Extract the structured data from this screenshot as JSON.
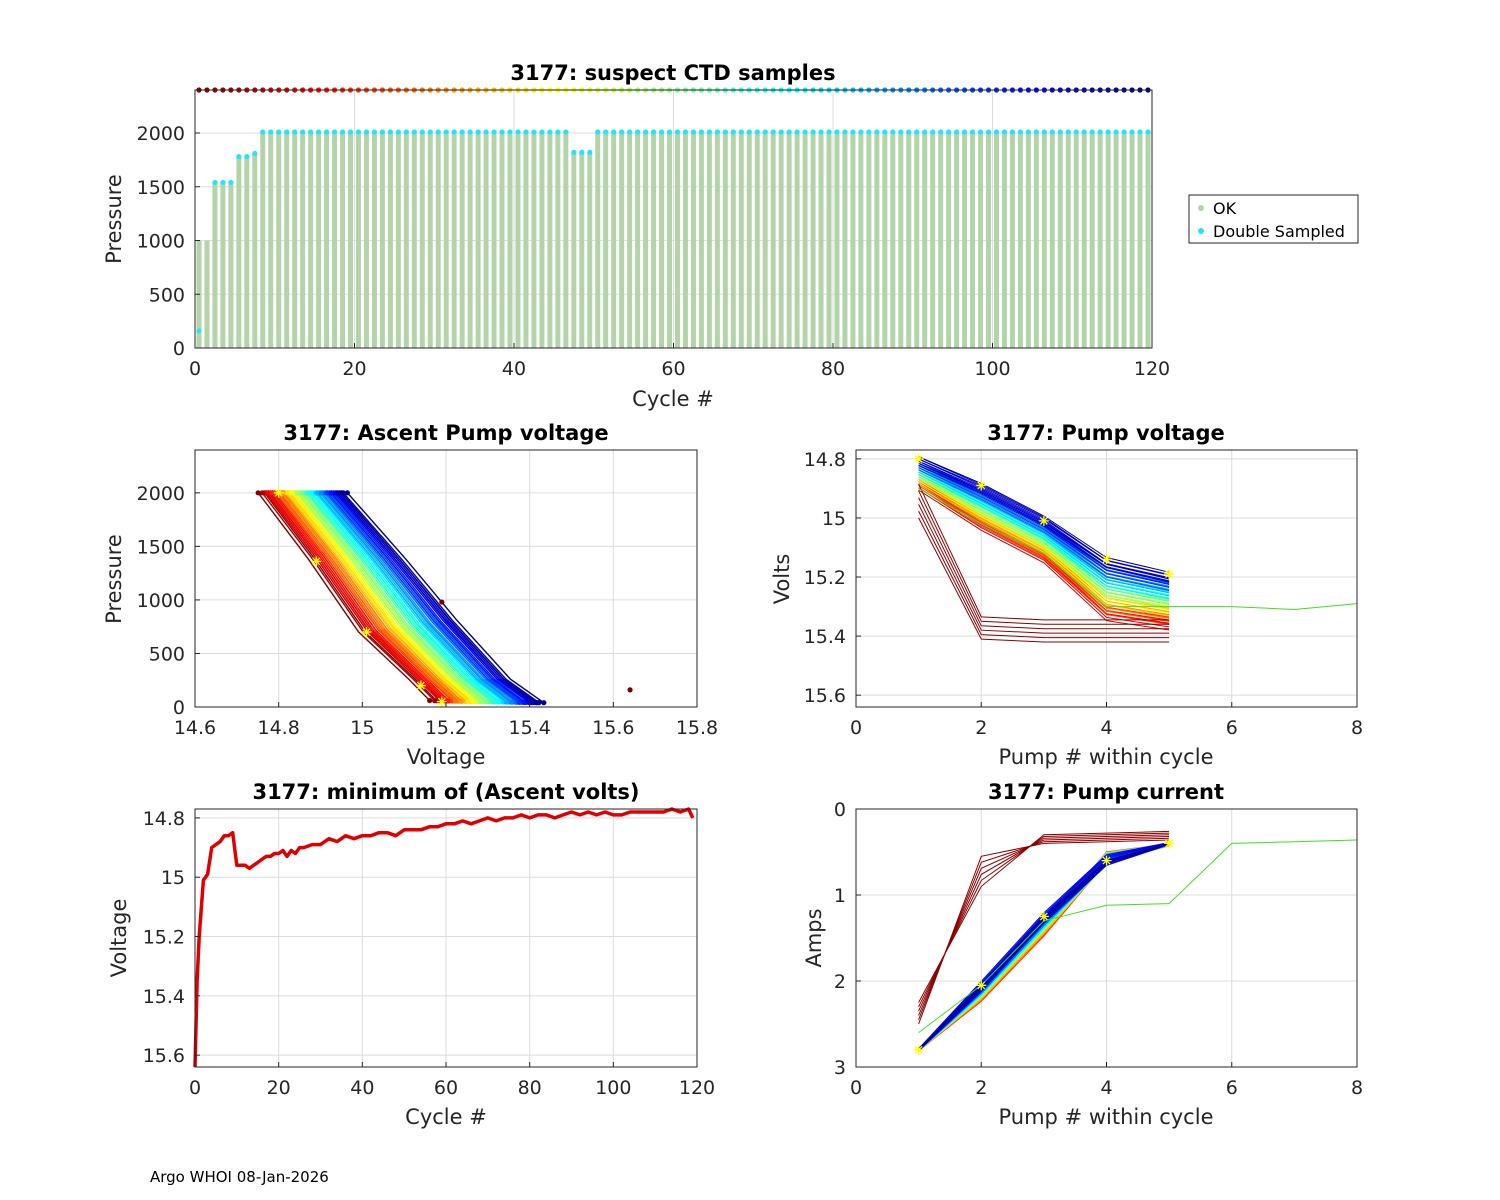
{
  "footer": "Argo WHOI 08-Jan-2026",
  "colors": {
    "ok": "#b3d4a8",
    "double": "#1ee6ff",
    "minline": "#e00000",
    "star": "#ffff00",
    "axis": "#262626",
    "grid": "#dcdcdc"
  },
  "chart_data": [
    {
      "id": "ctd",
      "type": "scatter",
      "title": "3177: suspect CTD samples",
      "xlabel": "Cycle #",
      "ylabel": "Pressure",
      "xlim": [
        0,
        120
      ],
      "ylim": [
        2400,
        0
      ],
      "xticks": [
        0,
        20,
        40,
        60,
        80,
        100,
        120
      ],
      "yticks": [
        0,
        500,
        1000,
        1500,
        2000
      ],
      "legend": [
        {
          "label": "OK",
          "color": "#b3d4a8"
        },
        {
          "label": "Double Sampled",
          "color": "#1ee6ff"
        }
      ],
      "legend_position": "outside-right",
      "cycles": [
        0,
        119
      ],
      "profile_depth_by_cycle": [
        [
          0,
          1000
        ],
        [
          1,
          1000
        ],
        [
          2,
          1540
        ],
        [
          3,
          1540
        ],
        [
          4,
          1540
        ],
        [
          5,
          1780
        ],
        [
          6,
          1780
        ],
        [
          7,
          1810
        ],
        [
          8,
          2010
        ],
        [
          47,
          1820
        ],
        [
          48,
          1820
        ],
        [
          49,
          1820
        ],
        [
          50,
          2010
        ],
        [
          119,
          2010
        ]
      ],
      "cycle_marker_pressure": 2400
    },
    {
      "id": "ascent",
      "type": "scatter",
      "title": "3177: Ascent Pump voltage",
      "xlabel": "Voltage",
      "ylabel": "Pressure",
      "xlim": [
        14.6,
        15.8
      ],
      "ylim": [
        2400,
        0
      ],
      "xticks": [
        14.6,
        14.8,
        15,
        15.2,
        15.4,
        15.6,
        15.8
      ],
      "xticklabels": [
        "14.6",
        "14.8",
        "15",
        "15.2",
        "15.4",
        "15.6",
        "15.8"
      ],
      "yticks": [
        0,
        500,
        1000,
        1500,
        2000
      ],
      "profile_points_first_cycle": [
        [
          14.76,
          2000
        ],
        [
          14.88,
          1380
        ],
        [
          15.0,
          700
        ],
        [
          15.12,
          260
        ],
        [
          15.17,
          60
        ]
      ],
      "profile_points_last_cycle": [
        [
          14.96,
          2000
        ],
        [
          15.1,
          1380
        ],
        [
          15.22,
          820
        ],
        [
          15.35,
          260
        ],
        [
          15.43,
          40
        ]
      ],
      "outliers": [
        [
          15.64,
          160
        ],
        [
          15.19,
          980
        ]
      ],
      "stars": [
        [
          14.8,
          2000
        ],
        [
          14.89,
          1360
        ],
        [
          15.01,
          700
        ],
        [
          15.14,
          200
        ],
        [
          15.19,
          50
        ]
      ]
    },
    {
      "id": "pumpv",
      "type": "line",
      "title": "3177: Pump voltage",
      "xlabel": "Pump # within cycle",
      "ylabel": "Volts",
      "xlim": [
        0,
        8
      ],
      "ylim": [
        14.77,
        15.64
      ],
      "xticks": [
        0,
        2,
        4,
        6,
        8
      ],
      "yticks": [
        14.8,
        15,
        15.2,
        15.4,
        15.6
      ],
      "yticklabels": [
        "14.8",
        "15",
        "15.2",
        "15.4",
        "15.6"
      ],
      "pump_index": [
        1,
        2,
        3,
        4,
        5
      ],
      "first_cycle": [
        14.8,
        14.89,
        15.0,
        15.14,
        15.19
      ],
      "last_cycle": [
        14.9,
        15.04,
        15.15,
        15.35,
        15.38
      ],
      "early_cycles": [
        15.0,
        15.41,
        15.42,
        15.42,
        15.42
      ],
      "outlier_cycle": {
        "pumps": [
          1,
          2,
          3,
          4,
          5,
          6,
          7,
          8
        ],
        "values": [
          14.9,
          15.02,
          15.12,
          15.3,
          15.3,
          15.3,
          15.31,
          15.29
        ]
      },
      "stars": [
        [
          1,
          14.8
        ],
        [
          2,
          14.89
        ],
        [
          3,
          15.01
        ],
        [
          4,
          15.14
        ],
        [
          5,
          15.19
        ]
      ]
    },
    {
      "id": "minv",
      "type": "line",
      "title": "3177: minimum of (Ascent volts)",
      "xlabel": "Cycle #",
      "ylabel": "Voltage",
      "xlim": [
        0,
        120
      ],
      "ylim": [
        14.77,
        15.64
      ],
      "xticks": [
        0,
        20,
        40,
        60,
        80,
        100,
        120
      ],
      "yticks": [
        14.8,
        15,
        15.2,
        15.4,
        15.6
      ],
      "yticklabels": [
        "14.8",
        "15",
        "15.2",
        "15.4",
        "15.6"
      ],
      "x": [
        0,
        0.5,
        1,
        2,
        3,
        4,
        5,
        6,
        7,
        8,
        9,
        10,
        11,
        12,
        13,
        14,
        15,
        16,
        17,
        18,
        19,
        20,
        21,
        22,
        23,
        24,
        25,
        26,
        28,
        30,
        32,
        34,
        36,
        38,
        40,
        42,
        44,
        46,
        48,
        50,
        52,
        54,
        56,
        58,
        60,
        62,
        64,
        66,
        68,
        70,
        72,
        74,
        76,
        78,
        80,
        82,
        84,
        86,
        88,
        90,
        92,
        94,
        96,
        98,
        100,
        102,
        104,
        106,
        108,
        110,
        112,
        114,
        116,
        118,
        119
      ],
      "values": [
        15.64,
        15.35,
        15.2,
        15.01,
        14.99,
        14.9,
        14.89,
        14.88,
        14.86,
        14.86,
        14.85,
        14.96,
        14.96,
        14.96,
        14.97,
        14.96,
        14.95,
        14.94,
        14.93,
        14.93,
        14.92,
        14.92,
        14.91,
        14.93,
        14.91,
        14.92,
        14.9,
        14.9,
        14.89,
        14.89,
        14.87,
        14.88,
        14.86,
        14.87,
        14.86,
        14.86,
        14.85,
        14.85,
        14.86,
        14.84,
        14.84,
        14.84,
        14.83,
        14.83,
        14.82,
        14.82,
        14.81,
        14.82,
        14.81,
        14.8,
        14.81,
        14.8,
        14.8,
        14.79,
        14.8,
        14.79,
        14.79,
        14.8,
        14.79,
        14.78,
        14.79,
        14.78,
        14.79,
        14.78,
        14.79,
        14.79,
        14.78,
        14.78,
        14.78,
        14.78,
        14.78,
        14.77,
        14.78,
        14.77,
        14.8
      ]
    },
    {
      "id": "pumpi",
      "type": "line",
      "title": "3177: Pump current",
      "xlabel": "Pump # within cycle",
      "ylabel": "Amps",
      "xlim": [
        0,
        8
      ],
      "ylim": [
        0,
        3
      ],
      "xticks": [
        0,
        2,
        4,
        6,
        8
      ],
      "yticks": [
        0,
        1,
        2,
        3
      ],
      "pump_index": [
        1,
        2,
        3,
        4,
        5
      ],
      "first_cycle": [
        2.8,
        2.05,
        1.25,
        0.6,
        0.4
      ],
      "last_cycle": [
        2.8,
        2.2,
        1.45,
        0.55,
        0.42
      ],
      "early_cycles": [
        2.5,
        0.55,
        0.4,
        0.38,
        0.36
      ],
      "outlier_cycle": {
        "pumps": [
          1,
          2,
          3,
          4,
          5,
          6,
          7,
          8
        ],
        "values": [
          2.6,
          2.05,
          1.3,
          1.12,
          1.1,
          0.4,
          0.38,
          0.36
        ]
      },
      "stars": [
        [
          1,
          2.8
        ],
        [
          2,
          2.05
        ],
        [
          3,
          1.25
        ],
        [
          4,
          0.6
        ],
        [
          5,
          0.4
        ]
      ]
    }
  ]
}
